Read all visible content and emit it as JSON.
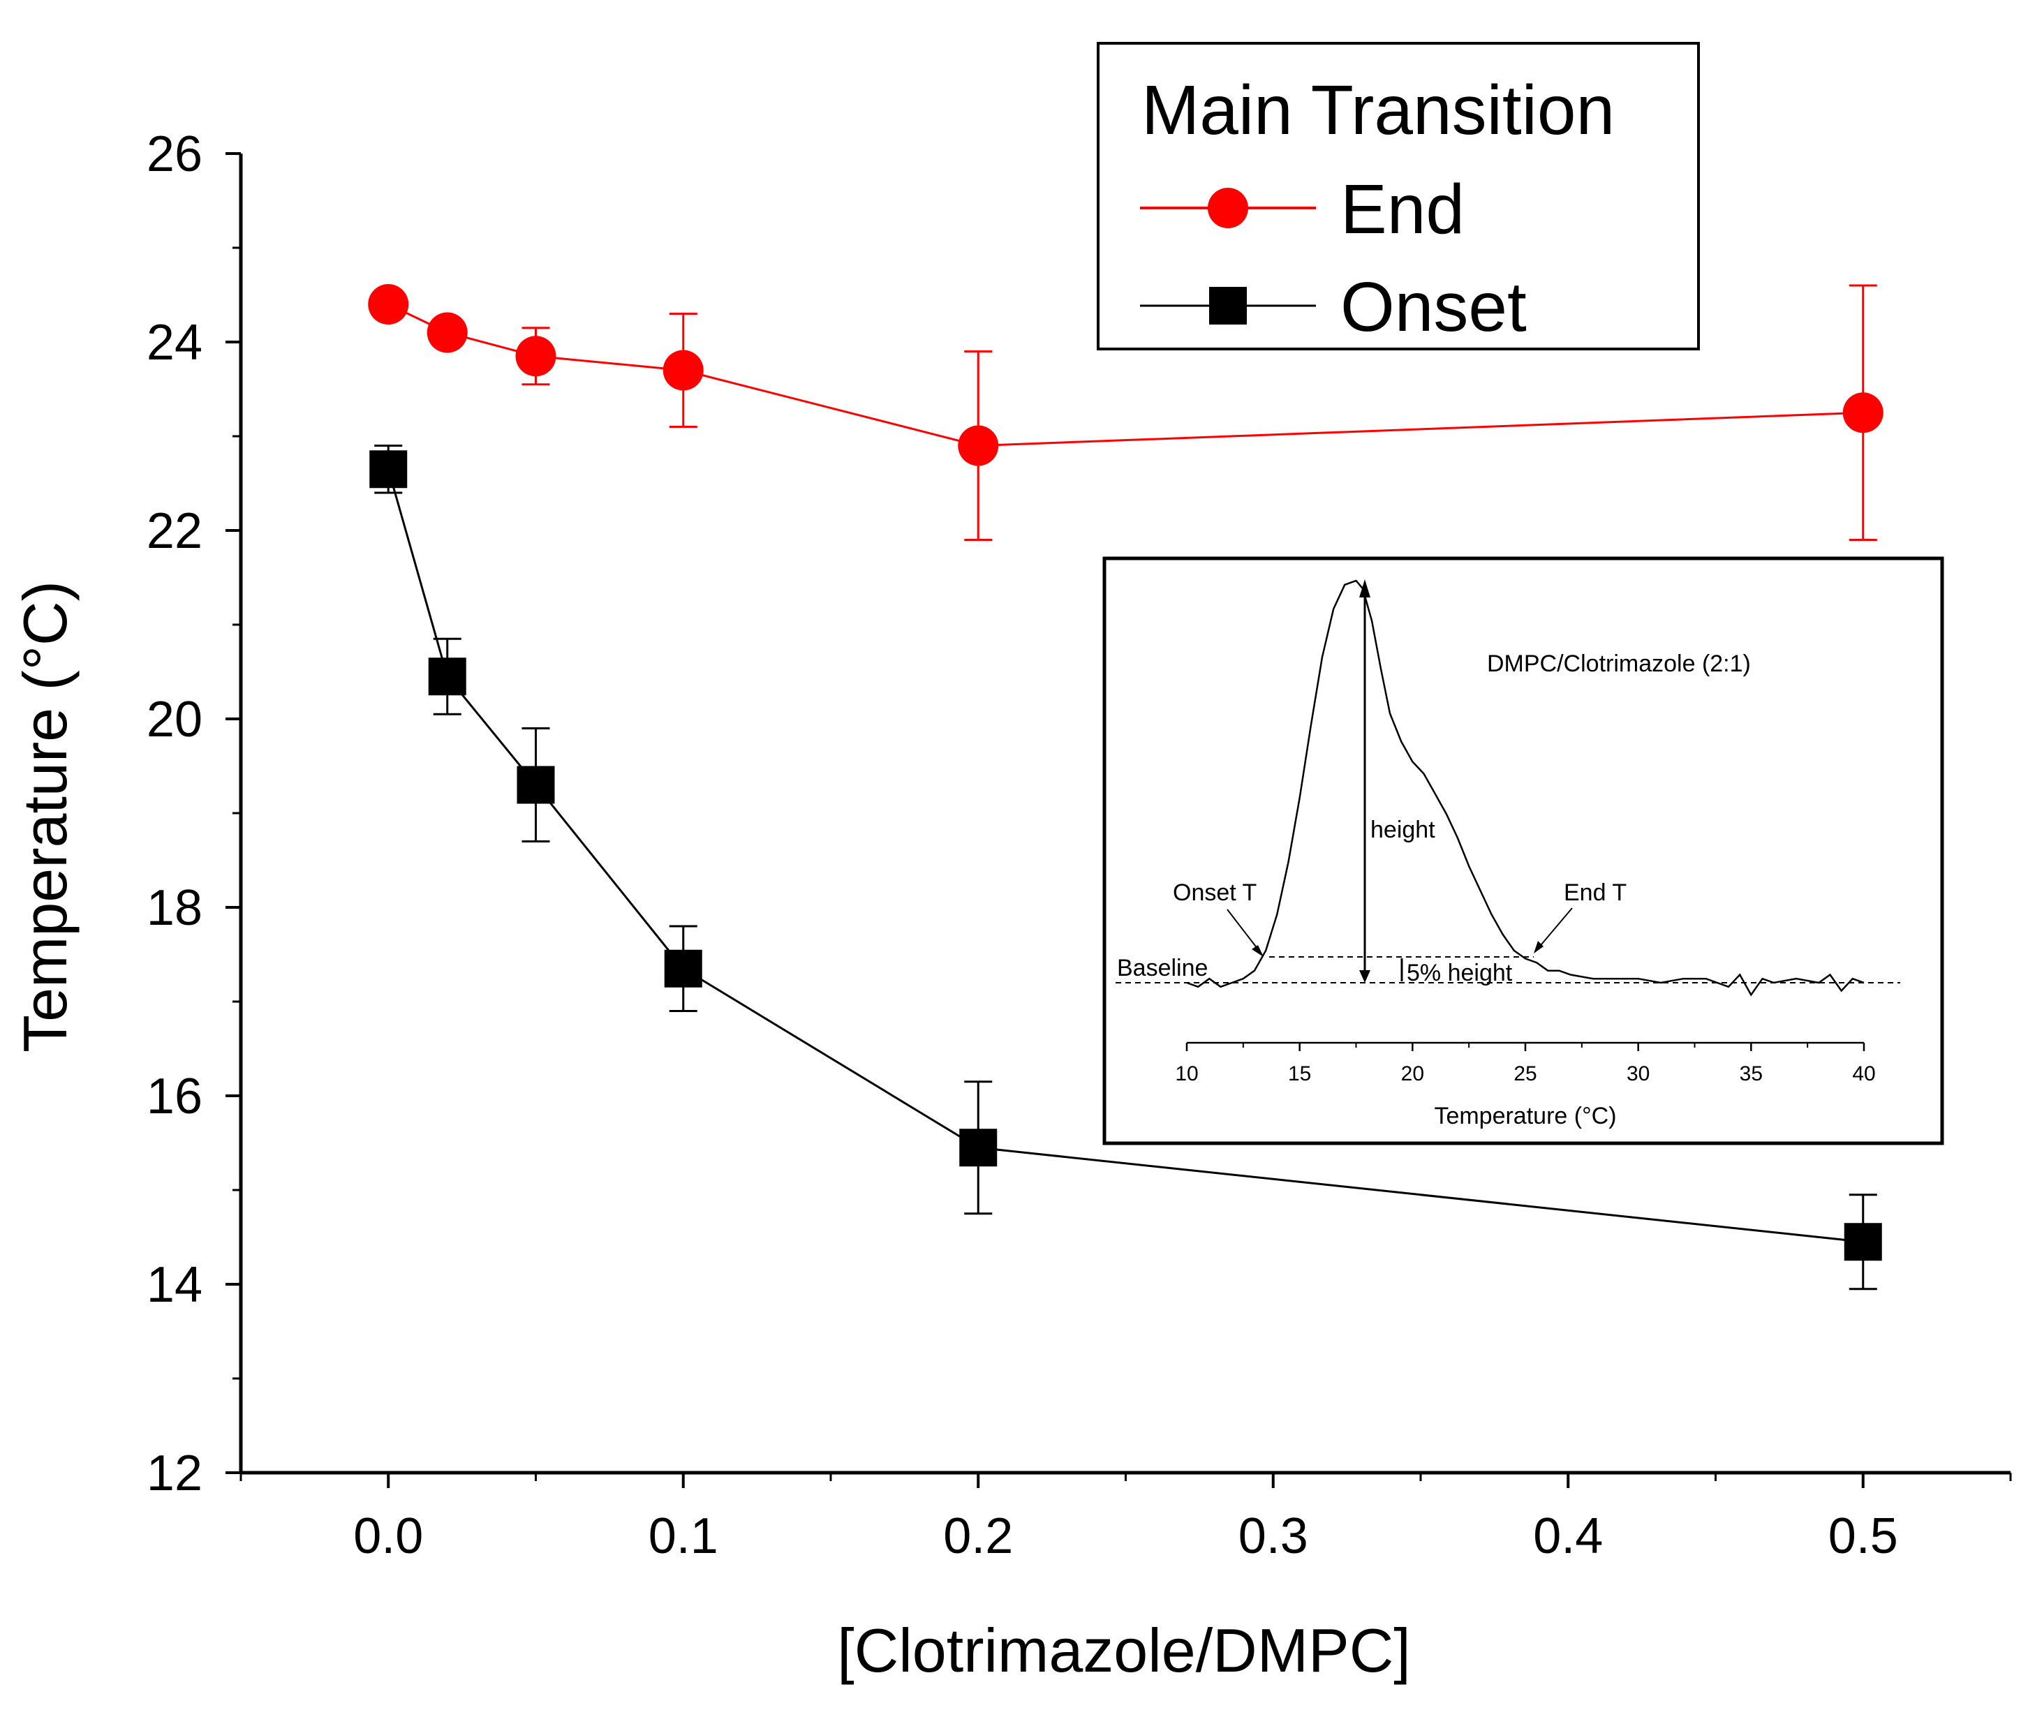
{
  "chart_data": {
    "type": "line",
    "xlabel": "[Clotrimazole/DMPC]",
    "ylabel": "Temperature (°C)",
    "xlim": [
      -0.05,
      0.55
    ],
    "ylim": [
      12,
      26
    ],
    "xticks": [
      "0.0",
      "0.1",
      "0.2",
      "0.3",
      "0.4",
      "0.5"
    ],
    "yticks": [
      "12",
      "14",
      "16",
      "18",
      "20",
      "22",
      "24",
      "26"
    ],
    "legend": {
      "title": "Main Transition",
      "position": "top-right"
    },
    "series": [
      {
        "name": "End",
        "color": "#ff0000",
        "marker": "circle",
        "x": [
          0.0,
          0.02,
          0.05,
          0.1,
          0.2,
          0.5
        ],
        "y": [
          24.4,
          24.1,
          23.85,
          23.7,
          22.9,
          23.25
        ],
        "yerr": [
          0.0,
          0.0,
          0.3,
          0.6,
          1.0,
          1.35
        ]
      },
      {
        "name": "Onset",
        "color": "#000000",
        "marker": "square",
        "x": [
          0.0,
          0.02,
          0.05,
          0.1,
          0.2,
          0.5
        ],
        "y": [
          22.65,
          20.45,
          19.3,
          17.35,
          15.45,
          14.45
        ],
        "yerr": [
          0.25,
          0.4,
          0.6,
          0.45,
          0.7,
          0.5
        ]
      }
    ],
    "inset": {
      "title": "DMPC/Clotrimazole (2:1)",
      "xlabel": "Temperature (°C)",
      "xlim": [
        10,
        40
      ],
      "xticks": [
        "10",
        "15",
        "20",
        "25",
        "30",
        "35",
        "40"
      ],
      "annotations": {
        "onset": "Onset T",
        "end": "End T",
        "height": "height",
        "baseline": "Baseline",
        "five_percent": "5% height"
      },
      "curve": {
        "x": [
          10.0,
          10.5,
          11.0,
          11.5,
          12.0,
          12.5,
          13.0,
          13.5,
          14.0,
          14.5,
          15.0,
          15.5,
          16.0,
          16.5,
          17.0,
          17.5,
          17.8,
          18.2,
          18.6,
          19.0,
          19.5,
          20.0,
          20.5,
          21.0,
          21.5,
          22.0,
          22.5,
          23.0,
          23.5,
          24.0,
          24.5,
          25.0,
          25.5,
          26.0,
          26.5,
          27.0,
          28.0,
          29.0,
          30.0,
          31.0,
          32.0,
          33.0,
          34.0,
          34.5,
          35.0,
          35.5,
          36.0,
          37.0,
          38.0,
          38.5,
          39.0,
          39.5,
          40.0
        ],
        "y": [
          0.0,
          -0.01,
          0.01,
          -0.01,
          0.0,
          0.01,
          0.03,
          0.08,
          0.17,
          0.3,
          0.46,
          0.64,
          0.81,
          0.93,
          0.99,
          1.0,
          0.98,
          0.9,
          0.78,
          0.67,
          0.6,
          0.55,
          0.52,
          0.47,
          0.42,
          0.36,
          0.29,
          0.23,
          0.17,
          0.12,
          0.08,
          0.06,
          0.05,
          0.03,
          0.03,
          0.02,
          0.01,
          0.01,
          0.01,
          0.0,
          0.01,
          0.01,
          -0.01,
          0.02,
          -0.03,
          0.01,
          0.0,
          0.01,
          0.0,
          0.02,
          -0.02,
          0.01,
          0.0
        ]
      }
    }
  }
}
